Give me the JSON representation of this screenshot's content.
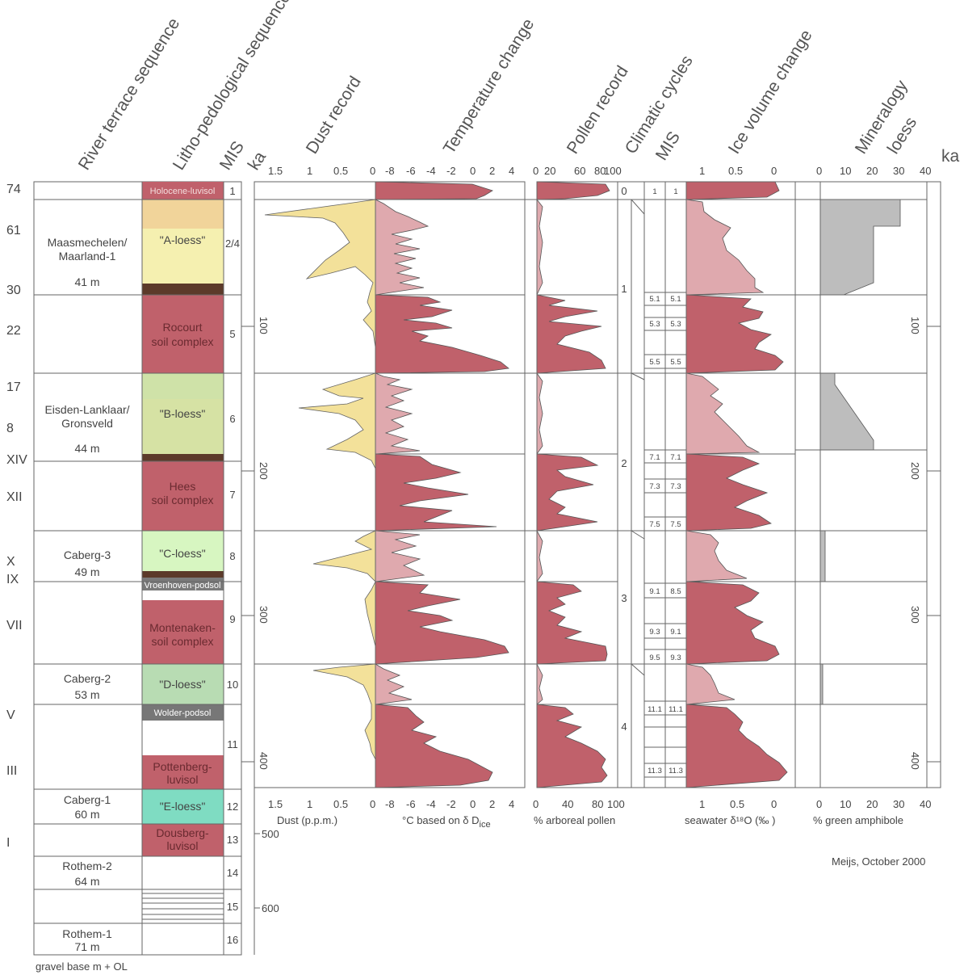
{
  "headers": {
    "river_terrace": "River terrace sequence",
    "litho": "Litho-pedological sequence",
    "mis": "MIS",
    "ka": "ka",
    "dust": "Dust record",
    "temperature": "Temperature change",
    "pollen": "Pollen record",
    "climatic": "Climatic cycles",
    "mis2": "MIS",
    "ice": "Ice volume change",
    "mineralogy": "Mineralogy\nloess",
    "ka2": "ka"
  },
  "terrace_numbers": [
    "74",
    "61",
    "30",
    "22",
    "17",
    "8",
    "XIV",
    "XII",
    "X",
    "IX",
    "VII",
    "V",
    "III",
    "I"
  ],
  "terraces": [
    {
      "name": "Maasmechelen/",
      "name2": "Maarland-1",
      "height": "41 m"
    },
    {
      "name": "Eisden-Lanklaar/",
      "name2": "Gronsveld",
      "height": "44 m"
    },
    {
      "name": "Caberg-3",
      "name2": "",
      "height": "49 m"
    },
    {
      "name": "Caberg-2",
      "name2": "",
      "height": "53 m"
    },
    {
      "name": "Caberg-1",
      "name2": "",
      "height": "60 m"
    },
    {
      "name": "Rothem-2",
      "name2": "",
      "height": "64 m"
    },
    {
      "name": "Rothem-1",
      "name2": "",
      "height": "71 m"
    }
  ],
  "litho_labels": [
    {
      "text": "Holocene-luvisol",
      "text2": ""
    },
    {
      "text": "\"A-loess\"",
      "text2": ""
    },
    {
      "text": "Rocourt",
      "text2": "soil complex"
    },
    {
      "text": "\"B-loess\"",
      "text2": ""
    },
    {
      "text": "Hees",
      "text2": "soil complex"
    },
    {
      "text": "\"C-loess\"",
      "text2": ""
    },
    {
      "text": "Vroenhoven-podsol",
      "text2": ""
    },
    {
      "text": "Montenaken-",
      "text2": "soil complex"
    },
    {
      "text": "\"D-loess\"",
      "text2": ""
    },
    {
      "text": "Wolder-podsol",
      "text2": ""
    },
    {
      "text": "Pottenberg-",
      "text2": "luvisol"
    },
    {
      "text": "\"E-loess\"",
      "text2": ""
    },
    {
      "text": "Dousberg-",
      "text2": "luvisol"
    }
  ],
  "mis_numbers": [
    "1",
    "2/4",
    "5",
    "6",
    "7",
    "8",
    "9",
    "10",
    "11",
    "12",
    "13",
    "14",
    "15",
    "16"
  ],
  "ka_ticks": [
    "100",
    "200",
    "300",
    "400",
    "500",
    "600"
  ],
  "axes": {
    "dust_ticks": [
      "1.5",
      "1",
      "0.5",
      "0"
    ],
    "temp_ticks": [
      "-8",
      "-6",
      "-4",
      "-2",
      "0",
      "2",
      "4"
    ],
    "temp_top0": "0",
    "pollen_ticks_top": [
      "0",
      "20",
      "60",
      "80",
      "100"
    ],
    "pollen_ticks_bottom": [
      "0",
      "40",
      "80",
      "100"
    ],
    "ice_ticks": [
      "1",
      "0.5",
      "0"
    ],
    "min_ticks": [
      "0",
      "10",
      "20",
      "30",
      "40"
    ],
    "min_ka_ticks": [
      "100",
      "200",
      "300",
      "400"
    ]
  },
  "axis_labels": {
    "dust": "Dust (p.p.m.)",
    "temp": "°C  based on δ D",
    "temp_sub": "ice",
    "pollen": "% arboreal pollen",
    "ice": "seawater  δ¹⁸O (‰ )",
    "mineral": "% green amphibole"
  },
  "cycles": [
    "0",
    "1",
    "2",
    "3",
    "4"
  ],
  "mis_sub": [
    [
      "1",
      "1"
    ],
    [
      "5.1",
      "5.1"
    ],
    [
      "5.3",
      "5.3"
    ],
    [
      "5.5",
      "5.5"
    ],
    [
      "7.1",
      "7.1"
    ],
    [
      "7.3",
      "7.3"
    ],
    [
      "7.5",
      "7.5"
    ],
    [
      "9.1",
      "8.5"
    ],
    [
      "9.3",
      "9.1"
    ],
    [
      "9.5",
      "9.3"
    ],
    [
      "11.1",
      "11.1"
    ],
    [
      "11.3",
      "11.3"
    ]
  ],
  "footer": {
    "gravel": "gravel base m + OL",
    "credit": "Meijs, October 2000"
  },
  "colors": {
    "soil": "#c0616b",
    "loess": "#f6efae",
    "loess_light": "#f1e6a4",
    "pink": "#dfa9ae",
    "dust": "#f3e19a",
    "grey": "#bdbdbd",
    "green_loess": "#d9eab0",
    "c_loess": "#d7f6c1",
    "d_loess": "#b8dcb3",
    "e_loess": "#7fdcc2",
    "podsol": "#777777",
    "brown": "#5c3a2a",
    "b_loess": "#d6e2a4"
  },
  "mineralogy_data": [
    {
      "interval": "A-loess",
      "pct": [
        30,
        20,
        10
      ]
    },
    {
      "interval": "B-loess",
      "pct": [
        5,
        20
      ]
    },
    {
      "interval": "C-loess",
      "pct": [
        2
      ]
    },
    {
      "interval": "D-loess",
      "pct": [
        1
      ]
    }
  ]
}
